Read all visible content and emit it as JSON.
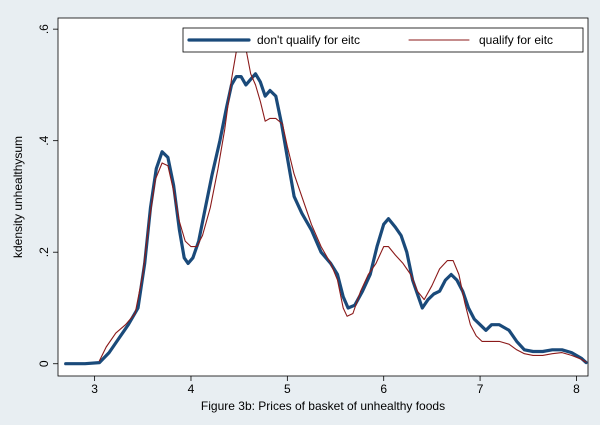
{
  "chart_data": {
    "type": "line",
    "title": "",
    "xlabel": "Figure 3b: Prices of basket of unhealthy foods",
    "ylabel": "kdensity unhealthysum",
    "xlim": [
      2.62,
      8.12
    ],
    "ylim": [
      -0.022,
      0.62
    ],
    "x_ticks": [
      3,
      4,
      5,
      6,
      7,
      8
    ],
    "y_ticks": [
      0,
      0.2,
      0.4,
      0.6
    ],
    "x_tick_labels": [
      "3",
      "4",
      "5",
      "6",
      "7",
      "8"
    ],
    "y_tick_labels": [
      "0",
      ".2",
      ".4",
      ".6"
    ],
    "grid": false,
    "legend_position": "top-right",
    "colors": {
      "plot_background": "#ffffff",
      "outer_background": "#e8eef2",
      "dont_qualify": "#1a4a7a",
      "qualify": "#8b1a1a"
    },
    "series": [
      {
        "name": "don't qualify for eitc",
        "color": "#1a4a7a",
        "width": "thick",
        "points": [
          [
            2.7,
            0.0
          ],
          [
            2.9,
            0.0
          ],
          [
            3.05,
            0.002
          ],
          [
            3.15,
            0.02
          ],
          [
            3.25,
            0.045
          ],
          [
            3.35,
            0.07
          ],
          [
            3.45,
            0.1
          ],
          [
            3.52,
            0.18
          ],
          [
            3.58,
            0.28
          ],
          [
            3.64,
            0.35
          ],
          [
            3.7,
            0.38
          ],
          [
            3.76,
            0.37
          ],
          [
            3.82,
            0.32
          ],
          [
            3.88,
            0.24
          ],
          [
            3.93,
            0.19
          ],
          [
            3.97,
            0.18
          ],
          [
            4.02,
            0.19
          ],
          [
            4.08,
            0.22
          ],
          [
            4.15,
            0.28
          ],
          [
            4.22,
            0.34
          ],
          [
            4.3,
            0.4
          ],
          [
            4.37,
            0.46
          ],
          [
            4.42,
            0.5
          ],
          [
            4.47,
            0.515
          ],
          [
            4.52,
            0.515
          ],
          [
            4.57,
            0.5
          ],
          [
            4.62,
            0.51
          ],
          [
            4.67,
            0.52
          ],
          [
            4.72,
            0.505
          ],
          [
            4.77,
            0.48
          ],
          [
            4.82,
            0.49
          ],
          [
            4.88,
            0.48
          ],
          [
            4.94,
            0.43
          ],
          [
            5.0,
            0.37
          ],
          [
            5.07,
            0.3
          ],
          [
            5.15,
            0.27
          ],
          [
            5.25,
            0.24
          ],
          [
            5.35,
            0.2
          ],
          [
            5.45,
            0.18
          ],
          [
            5.52,
            0.16
          ],
          [
            5.58,
            0.12
          ],
          [
            5.63,
            0.1
          ],
          [
            5.7,
            0.105
          ],
          [
            5.78,
            0.13
          ],
          [
            5.86,
            0.16
          ],
          [
            5.93,
            0.21
          ],
          [
            6.0,
            0.25
          ],
          [
            6.05,
            0.26
          ],
          [
            6.12,
            0.245
          ],
          [
            6.18,
            0.23
          ],
          [
            6.24,
            0.2
          ],
          [
            6.3,
            0.15
          ],
          [
            6.36,
            0.12
          ],
          [
            6.4,
            0.1
          ],
          [
            6.46,
            0.115
          ],
          [
            6.52,
            0.125
          ],
          [
            6.58,
            0.13
          ],
          [
            6.64,
            0.15
          ],
          [
            6.7,
            0.16
          ],
          [
            6.76,
            0.15
          ],
          [
            6.82,
            0.13
          ],
          [
            6.88,
            0.1
          ],
          [
            6.94,
            0.08
          ],
          [
            7.0,
            0.07
          ],
          [
            7.06,
            0.06
          ],
          [
            7.12,
            0.07
          ],
          [
            7.2,
            0.07
          ],
          [
            7.3,
            0.06
          ],
          [
            7.38,
            0.04
          ],
          [
            7.46,
            0.025
          ],
          [
            7.55,
            0.022
          ],
          [
            7.65,
            0.022
          ],
          [
            7.75,
            0.025
          ],
          [
            7.85,
            0.025
          ],
          [
            7.95,
            0.02
          ],
          [
            8.05,
            0.01
          ],
          [
            8.1,
            0.002
          ]
        ]
      },
      {
        "name": "qualify for eitc",
        "color": "#8b1a1a",
        "width": "thin",
        "points": [
          [
            3.05,
            0.005
          ],
          [
            3.12,
            0.03
          ],
          [
            3.22,
            0.055
          ],
          [
            3.32,
            0.07
          ],
          [
            3.42,
            0.09
          ],
          [
            3.5,
            0.16
          ],
          [
            3.57,
            0.26
          ],
          [
            3.63,
            0.33
          ],
          [
            3.7,
            0.36
          ],
          [
            3.76,
            0.355
          ],
          [
            3.82,
            0.31
          ],
          [
            3.88,
            0.255
          ],
          [
            3.94,
            0.22
          ],
          [
            4.0,
            0.21
          ],
          [
            4.06,
            0.21
          ],
          [
            4.12,
            0.23
          ],
          [
            4.2,
            0.28
          ],
          [
            4.28,
            0.35
          ],
          [
            4.35,
            0.42
          ],
          [
            4.42,
            0.51
          ],
          [
            4.47,
            0.56
          ],
          [
            4.52,
            0.59
          ],
          [
            4.57,
            0.565
          ],
          [
            4.62,
            0.52
          ],
          [
            4.67,
            0.5
          ],
          [
            4.72,
            0.47
          ],
          [
            4.77,
            0.435
          ],
          [
            4.82,
            0.44
          ],
          [
            4.88,
            0.44
          ],
          [
            4.95,
            0.43
          ],
          [
            5.0,
            0.39
          ],
          [
            5.07,
            0.34
          ],
          [
            5.15,
            0.3
          ],
          [
            5.25,
            0.25
          ],
          [
            5.35,
            0.21
          ],
          [
            5.45,
            0.18
          ],
          [
            5.52,
            0.15
          ],
          [
            5.58,
            0.1
          ],
          [
            5.62,
            0.085
          ],
          [
            5.68,
            0.09
          ],
          [
            5.76,
            0.13
          ],
          [
            5.84,
            0.16
          ],
          [
            5.92,
            0.18
          ],
          [
            6.0,
            0.21
          ],
          [
            6.05,
            0.21
          ],
          [
            6.12,
            0.195
          ],
          [
            6.2,
            0.18
          ],
          [
            6.28,
            0.16
          ],
          [
            6.35,
            0.13
          ],
          [
            6.42,
            0.115
          ],
          [
            6.5,
            0.14
          ],
          [
            6.58,
            0.17
          ],
          [
            6.66,
            0.185
          ],
          [
            6.72,
            0.185
          ],
          [
            6.78,
            0.16
          ],
          [
            6.84,
            0.11
          ],
          [
            6.9,
            0.07
          ],
          [
            6.96,
            0.05
          ],
          [
            7.02,
            0.04
          ],
          [
            7.1,
            0.04
          ],
          [
            7.2,
            0.04
          ],
          [
            7.3,
            0.035
          ],
          [
            7.38,
            0.025
          ],
          [
            7.46,
            0.018
          ],
          [
            7.55,
            0.015
          ],
          [
            7.65,
            0.015
          ],
          [
            7.75,
            0.018
          ],
          [
            7.85,
            0.02
          ],
          [
            7.95,
            0.015
          ],
          [
            8.05,
            0.008
          ],
          [
            8.1,
            0.003
          ]
        ]
      }
    ]
  }
}
